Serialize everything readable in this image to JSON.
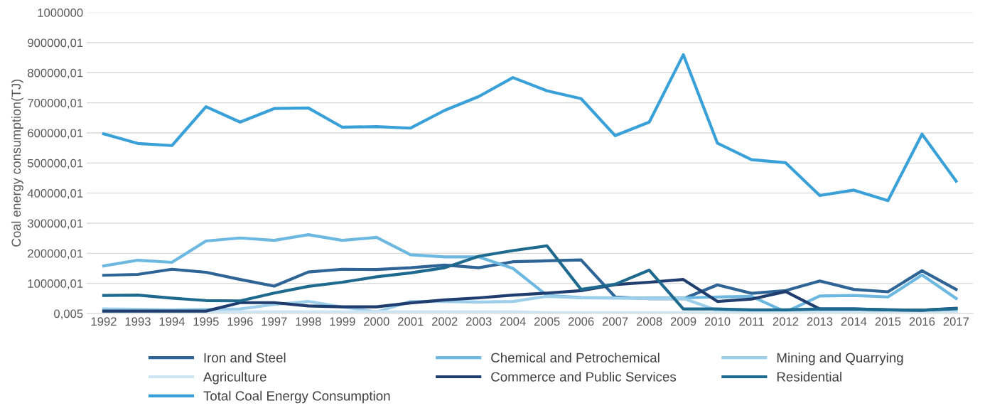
{
  "chart_data": {
    "type": "line",
    "ylabel": "Coal energy consumption(TJ)",
    "categories": [
      "1992",
      "1993",
      "1994",
      "1995",
      "1996",
      "1997",
      "1998",
      "1999",
      "2000",
      "2001",
      "2002",
      "2003",
      "2004",
      "2005",
      "2006",
      "2007",
      "2008",
      "2009",
      "2010",
      "2011",
      "2012",
      "2013",
      "2014",
      "2015",
      "2016",
      "2017"
    ],
    "series": [
      {
        "name": "Iron and Steel",
        "color": "#2e6496",
        "values": [
          127000,
          130000,
          147000,
          137000,
          113000,
          91000,
          138000,
          147000,
          146000,
          152000,
          161000,
          152000,
          172000,
          175000,
          178000,
          55000,
          49000,
          49000,
          95000,
          67000,
          76000,
          108000,
          80000,
          72000,
          142000,
          80000
        ]
      },
      {
        "name": "Chemical and Petrochemical",
        "color": "#6cb8e0",
        "values": [
          158000,
          177000,
          170000,
          241000,
          251000,
          243000,
          262000,
          243000,
          253000,
          195000,
          188000,
          188000,
          150000,
          60000,
          53000,
          52000,
          52000,
          52000,
          55000,
          57000,
          5000,
          58000,
          60000,
          55000,
          128000,
          50000
        ]
      },
      {
        "name": "Mining and Quarrying",
        "color": "#9dcfea",
        "values": [
          15000,
          14000,
          12000,
          14000,
          15000,
          30000,
          40000,
          22000,
          5000,
          40000,
          40000,
          38000,
          40000,
          57000,
          52000,
          51000,
          50000,
          50000,
          10000,
          10000,
          8000,
          8000,
          8000,
          8000,
          8000,
          8000
        ]
      },
      {
        "name": "Agriculture",
        "color": "#cde4f2",
        "values": [
          5000,
          5000,
          5000,
          5000,
          5000,
          6000,
          6000,
          6000,
          6000,
          6000,
          6000,
          6000,
          6000,
          3000,
          3000,
          3000,
          3000,
          3000,
          3000,
          3000,
          3000,
          3000,
          3000,
          3000,
          3000,
          3000
        ]
      },
      {
        "name": "Commerce and Public Services",
        "color": "#1f3d6e",
        "values": [
          8000,
          8000,
          8000,
          8000,
          36000,
          36000,
          25000,
          22000,
          22000,
          35000,
          45000,
          52000,
          61000,
          68000,
          76000,
          96000,
          104000,
          113000,
          40000,
          48000,
          73000,
          15000,
          15000,
          12000,
          11000,
          17000
        ]
      },
      {
        "name": "Residential",
        "color": "#1e6a8e",
        "values": [
          60000,
          61000,
          51000,
          43000,
          42000,
          68000,
          90000,
          104000,
          122000,
          135000,
          152000,
          190000,
          209000,
          225000,
          80000,
          97000,
          144000,
          15000,
          15000,
          12000,
          12000,
          15000,
          15000,
          12000,
          11000,
          16000
        ]
      },
      {
        "name": "Total Coal Energy Consumption",
        "color": "#3aa0d8",
        "values": [
          597000,
          565000,
          558000,
          687000,
          636000,
          681000,
          683000,
          619000,
          621000,
          616000,
          675000,
          721000,
          784000,
          740000,
          714000,
          591000,
          636000,
          860000,
          566000,
          511000,
          501000,
          392000,
          410000,
          375000,
          596000,
          440000
        ]
      }
    ],
    "ylim": [
      0.005,
      1000000
    ],
    "yticks": [
      {
        "value": 0.005,
        "label": "0,005"
      },
      {
        "value": 100000.01,
        "label": "100000,01"
      },
      {
        "value": 200000.01,
        "label": "200000,01"
      },
      {
        "value": 300000.01,
        "label": "300000,01"
      },
      {
        "value": 400000.01,
        "label": "400000,01"
      },
      {
        "value": 500000.01,
        "label": "500000,01"
      },
      {
        "value": 600000.01,
        "label": "600000,01"
      },
      {
        "value": 700000.01,
        "label": "700000,01"
      },
      {
        "value": 800000.01,
        "label": "800000,01"
      },
      {
        "value": 900000.01,
        "label": "900000,01"
      },
      1000000
    ],
    "grid": "y",
    "legend": "bottom",
    "line_style": "solid",
    "marker": "none"
  }
}
